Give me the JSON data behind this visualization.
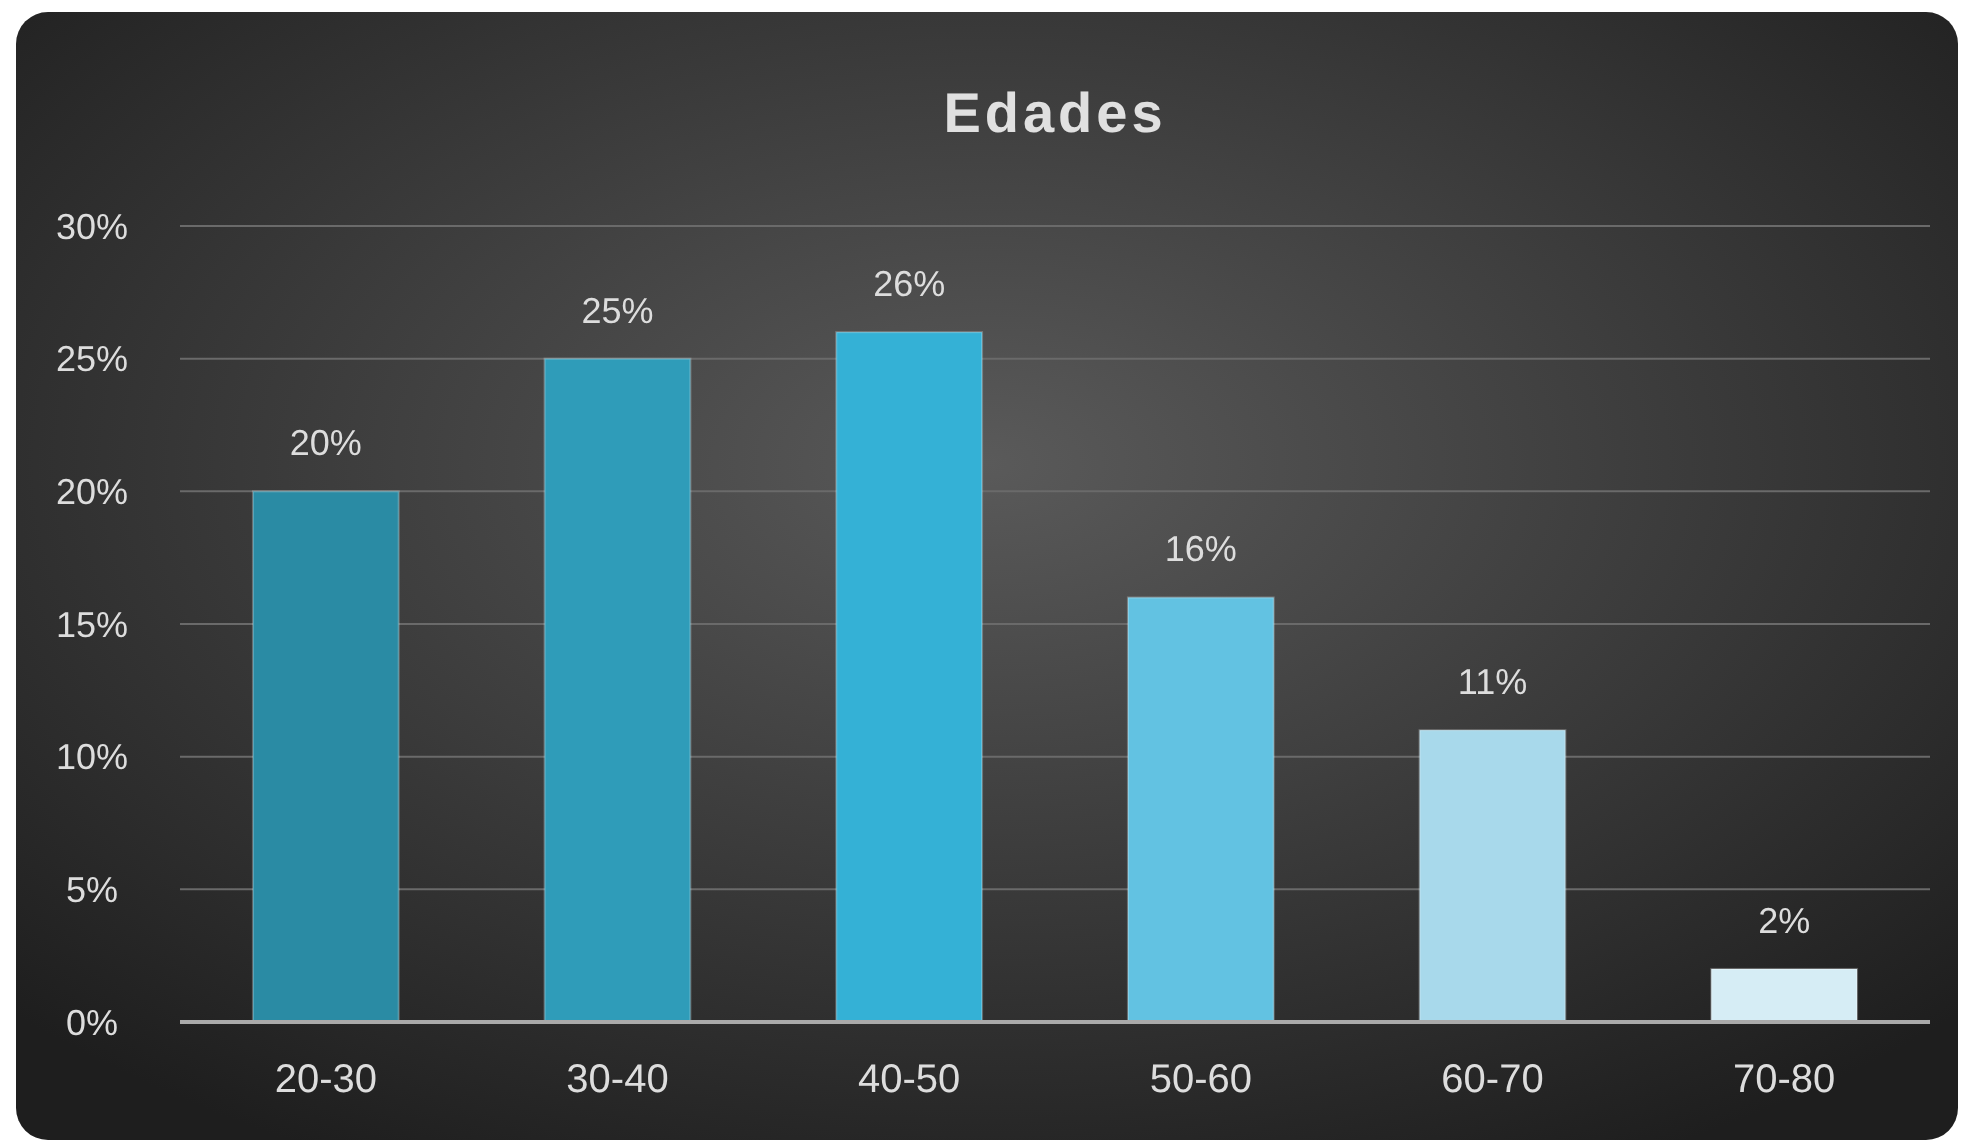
{
  "chart_data": {
    "type": "bar",
    "title": "Edades",
    "categories": [
      "20-30",
      "30-40",
      "40-50",
      "50-60",
      "60-70",
      "70-80"
    ],
    "values": [
      20,
      25,
      26,
      16,
      11,
      2
    ],
    "colors": [
      "#2a8ba4",
      "#2f9cb9",
      "#34b1d6",
      "#62c2e2",
      "#a8d9eb",
      "#d6edf5"
    ],
    "value_labels": [
      "20%",
      "25%",
      "26%",
      "16%",
      "11%",
      "2%"
    ],
    "ylim": [
      0,
      30
    ],
    "yticks": [
      {
        "value": 0,
        "label": "0%"
      },
      {
        "value": 5,
        "label": "5%"
      },
      {
        "value": 10,
        "label": "10%"
      },
      {
        "value": 15,
        "label": "15%"
      },
      {
        "value": 20,
        "label": "20%"
      },
      {
        "value": 25,
        "label": "25%"
      },
      {
        "value": 30,
        "label": "30%"
      }
    ],
    "grid": "y"
  }
}
